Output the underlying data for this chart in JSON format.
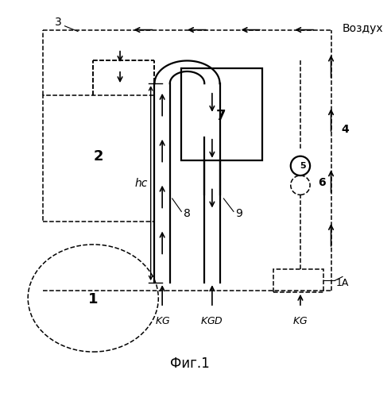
{
  "title": "Фиг.1",
  "vozdukh_label": "Воздух",
  "bg_color": "#ffffff",
  "lw_main": 1.6,
  "lw_dashed": 1.1
}
